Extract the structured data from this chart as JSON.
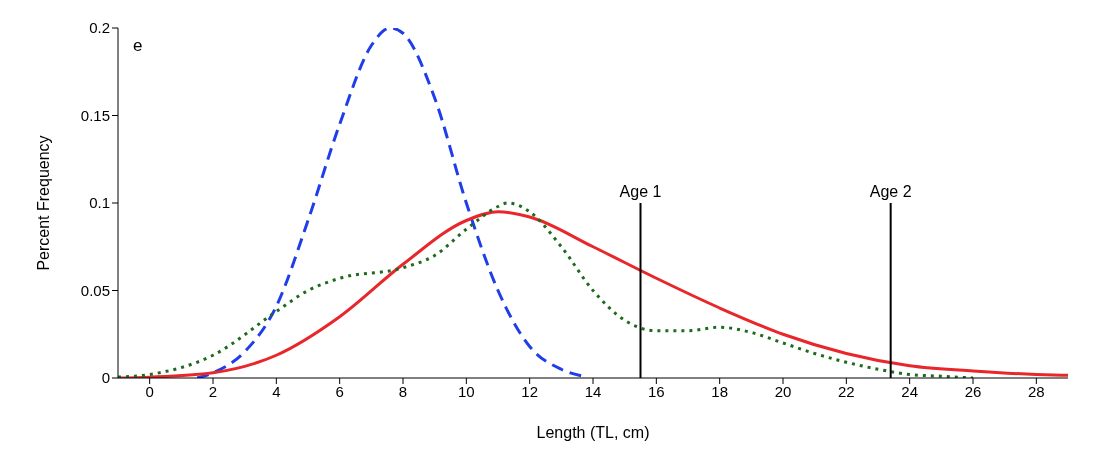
{
  "chart_data": {
    "type": "line",
    "xlabel": "Length (TL, cm)",
    "ylabel": "Percent Frequency",
    "xlim": [
      -1,
      29
    ],
    "xticks": [
      0,
      2,
      4,
      6,
      8,
      10,
      12,
      14,
      16,
      18,
      20,
      22,
      24,
      26,
      28
    ],
    "ylim": [
      0,
      0.2
    ],
    "yticks": [
      0,
      0.05,
      0.1,
      0.15,
      0.2
    ],
    "marker": "none",
    "series": [
      {
        "color": "#1f3de8",
        "line_style": "dashed",
        "x": [
          1.5,
          2,
          3,
          4,
          5,
          6,
          7,
          7.6,
          8,
          9,
          10,
          11,
          12,
          13,
          13.7
        ],
        "values": [
          0,
          0.003,
          0.015,
          0.041,
          0.09,
          0.145,
          0.19,
          0.2,
          0.197,
          0.16,
          0.1,
          0.05,
          0.018,
          0.005,
          0.001
        ]
      },
      {
        "color": "#e8262b",
        "line_style": "solid",
        "x": [
          -1,
          0,
          2,
          4,
          6,
          8,
          10,
          11,
          12,
          14,
          16,
          18,
          20,
          22,
          24,
          26,
          28,
          29
        ],
        "values": [
          0,
          0.0005,
          0.003,
          0.013,
          0.035,
          0.065,
          0.09,
          0.095,
          0.092,
          0.075,
          0.057,
          0.04,
          0.025,
          0.014,
          0.007,
          0.004,
          0.002,
          0.0015
        ]
      },
      {
        "color": "#1e6b1e",
        "line_style": "dotted",
        "x": [
          -1,
          0,
          2,
          4,
          5,
          6,
          8,
          9,
          10,
          11,
          11.3,
          12,
          13,
          14,
          15,
          16,
          17,
          18,
          19,
          20,
          21,
          22,
          23,
          24,
          25,
          26
        ],
        "values": [
          0.0005,
          0.002,
          0.013,
          0.038,
          0.05,
          0.057,
          0.063,
          0.07,
          0.085,
          0.098,
          0.1,
          0.095,
          0.075,
          0.05,
          0.033,
          0.027,
          0.027,
          0.029,
          0.026,
          0.02,
          0.014,
          0.009,
          0.005,
          0.002,
          0.001,
          0
        ]
      }
    ],
    "ref_lines": [
      {
        "axis": "x",
        "value": 15.5,
        "color": "#000000"
      },
      {
        "axis": "x",
        "value": 23.4,
        "color": "#000000"
      }
    ],
    "annotations": [
      "e",
      {
        "text": "Age 1",
        "x": 15.5,
        "y": 0.1
      },
      {
        "text": "Age 2",
        "x": 23.4,
        "y": 0.1
      }
    ]
  }
}
